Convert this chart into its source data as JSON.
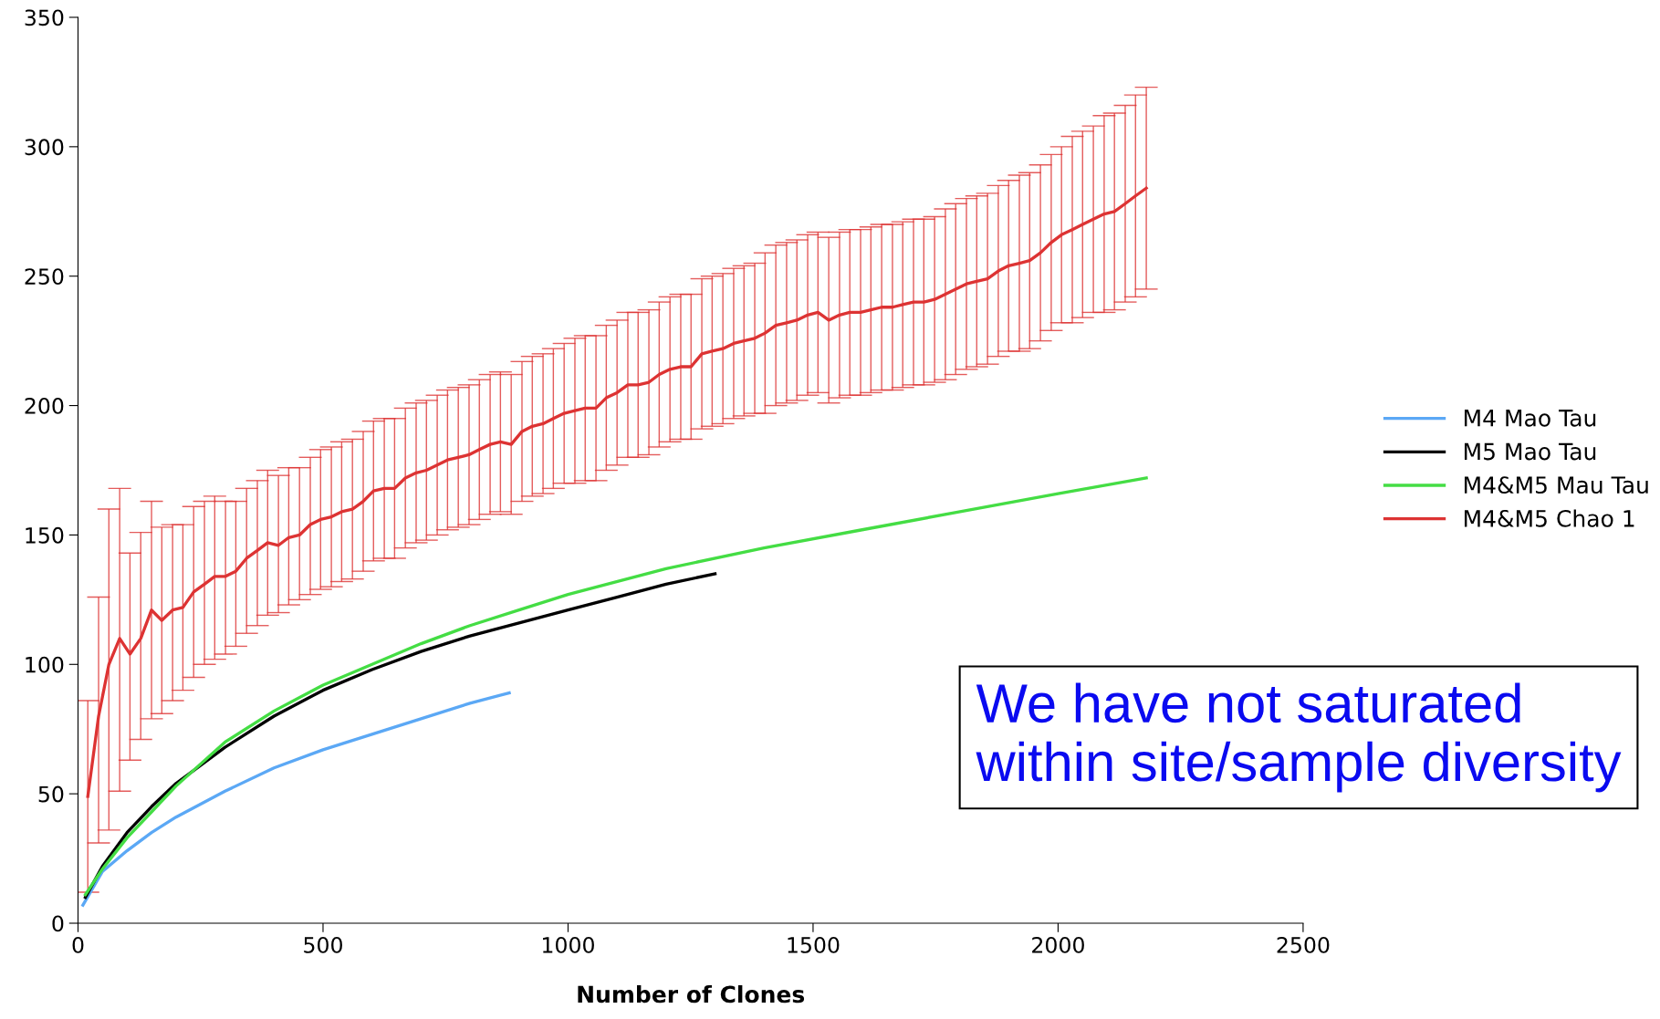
{
  "chart_data": {
    "type": "line",
    "xlabel": "Number of Clones",
    "xlim": [
      0,
      2500
    ],
    "xticks": [
      0,
      500,
      1000,
      1500,
      2000,
      2500
    ],
    "ylim": [
      0,
      350
    ],
    "yticks": [
      0,
      50,
      100,
      150,
      200,
      250,
      300,
      350
    ],
    "grid": false,
    "legend": "right",
    "marker": "none",
    "line_style": "solid",
    "annotations": [
      "We have not saturated within site/sample diversity"
    ],
    "series": [
      {
        "name": "M4 Mao Tau",
        "color": "#5ba8f5",
        "x": [
          10,
          50,
          100,
          150,
          200,
          300,
          400,
          500,
          600,
          700,
          800,
          880
        ],
        "values": [
          7,
          20,
          28,
          35,
          41,
          51,
          60,
          67,
          73,
          79,
          85,
          89
        ]
      },
      {
        "name": "M5 Mao Tau",
        "color": "#000000",
        "x": [
          15,
          50,
          100,
          150,
          200,
          300,
          400,
          500,
          600,
          700,
          800,
          900,
          1000,
          1100,
          1200,
          1300
        ],
        "values": [
          10,
          22,
          35,
          45,
          54,
          68,
          80,
          90,
          98,
          105,
          111,
          116,
          121,
          126,
          131,
          135
        ]
      },
      {
        "name": "M4&M5 Mau Tau",
        "color": "#44dd44",
        "x": [
          15,
          50,
          100,
          150,
          200,
          300,
          400,
          500,
          600,
          700,
          800,
          900,
          1000,
          1200,
          1400,
          1600,
          1800,
          2000,
          2180
        ],
        "values": [
          11,
          21,
          33,
          43,
          53,
          70,
          82,
          92,
          100,
          108,
          115,
          121,
          127,
          137,
          145,
          152,
          159,
          166,
          172
        ]
      },
      {
        "name": "M4&M5 Chao 1",
        "color": "#dd3333",
        "x": [
          20,
          42,
          63,
          85,
          106,
          128,
          150,
          171,
          193,
          214,
          236,
          258,
          279,
          301,
          322,
          344,
          366,
          387,
          409,
          430,
          452,
          474,
          495,
          517,
          538,
          560,
          582,
          603,
          625,
          646,
          668,
          690,
          711,
          733,
          754,
          776,
          798,
          819,
          841,
          862,
          884,
          906,
          927,
          949,
          970,
          992,
          1014,
          1035,
          1057,
          1078,
          1100,
          1122,
          1143,
          1165,
          1186,
          1208,
          1230,
          1251,
          1273,
          1294,
          1316,
          1338,
          1359,
          1381,
          1402,
          1424,
          1446,
          1467,
          1489,
          1510,
          1532,
          1554,
          1575,
          1597,
          1618,
          1640,
          1662,
          1683,
          1705,
          1726,
          1748,
          1770,
          1791,
          1813,
          1834,
          1856,
          1878,
          1899,
          1921,
          1942,
          1964,
          1986,
          2007,
          2029,
          2050,
          2072,
          2094,
          2115,
          2137,
          2158,
          2180
        ],
        "values": [
          49,
          80,
          100,
          110,
          104,
          110,
          121,
          117,
          121,
          122,
          128,
          131,
          134,
          134,
          136,
          141,
          144,
          147,
          146,
          149,
          150,
          154,
          156,
          157,
          159,
          160,
          163,
          167,
          168,
          168,
          172,
          174,
          175,
          177,
          179,
          180,
          181,
          183,
          185,
          186,
          185,
          190,
          192,
          193,
          195,
          197,
          198,
          199,
          199,
          203,
          205,
          208,
          208,
          209,
          212,
          214,
          215,
          215,
          220,
          221,
          222,
          224,
          225,
          226,
          228,
          231,
          232,
          233,
          235,
          236,
          233,
          235,
          236,
          236,
          237,
          238,
          238,
          239,
          240,
          240,
          241,
          243,
          245,
          247,
          248,
          249,
          252,
          254,
          255,
          256,
          259,
          263,
          266,
          268,
          270,
          272,
          274,
          275,
          278,
          281,
          284
        ],
        "errors": [
          [
            12,
            86
          ],
          [
            31,
            126
          ],
          [
            36,
            160
          ],
          [
            51,
            168
          ],
          [
            63,
            143
          ],
          [
            71,
            151
          ],
          [
            79,
            163
          ],
          [
            81,
            153
          ],
          [
            86,
            154
          ],
          [
            90,
            154
          ],
          [
            95,
            161
          ],
          [
            100,
            163
          ],
          [
            102,
            165
          ],
          [
            104,
            163
          ],
          [
            107,
            163
          ],
          [
            112,
            168
          ],
          [
            115,
            171
          ],
          [
            119,
            175
          ],
          [
            120,
            173
          ],
          [
            123,
            176
          ],
          [
            125,
            176
          ],
          [
            127,
            180
          ],
          27,
          27,
          27,
          27,
          27,
          27,
          27,
          27,
          27,
          27,
          27,
          27,
          27,
          27,
          27,
          27,
          27,
          27,
          27,
          27,
          27,
          27,
          27,
          27,
          28,
          28,
          28,
          28,
          28,
          28,
          28,
          28,
          28,
          28,
          28,
          28,
          29,
          29,
          29,
          29,
          29,
          29,
          31,
          31,
          31,
          31,
          31,
          31,
          32,
          32,
          32,
          32,
          32,
          32,
          32,
          32,
          32,
          32,
          32,
          33,
          33,
          33,
          33,
          33,
          33,
          33,
          34,
          34,
          34,
          34,
          34,
          36,
          36,
          36,
          38,
          38,
          38,
          39,
          39
        ]
      }
    ]
  }
}
